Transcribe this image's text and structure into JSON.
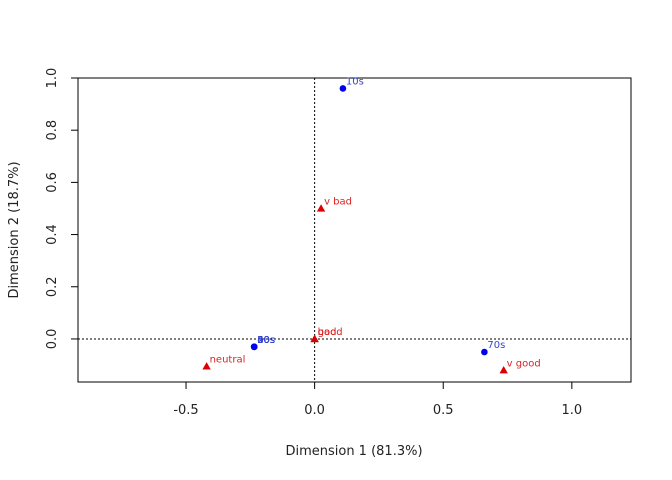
{
  "chart_data": {
    "type": "scatter",
    "title": "",
    "xlabel": "Dimension 1 (81.3%)",
    "ylabel": "Dimension 2 (18.7%)",
    "xlim": [
      -0.92,
      1.23
    ],
    "ylim": [
      -0.165,
      1.0
    ],
    "xticks": [
      -0.5,
      0.0,
      0.5,
      1.0
    ],
    "xtick_labels": [
      "-0.5",
      "0.0",
      "0.5",
      "1.0"
    ],
    "yticks": [
      0.0,
      0.2,
      0.4,
      0.6,
      0.8,
      1.0
    ],
    "ytick_labels": [
      "0.0",
      "0.2",
      "0.4",
      "0.6",
      "0.8",
      "1.0"
    ],
    "reference_lines": {
      "x": 0,
      "y": 0,
      "style": "dotted"
    },
    "grid": false,
    "series": [
      {
        "marker": "circle",
        "color": "#0000ee",
        "label_color": "#3344cc",
        "points": [
          {
            "label": "10s",
            "x": 0.11,
            "y": 0.96
          },
          {
            "label": "20s",
            "x": -0.235,
            "y": -0.03
          },
          {
            "label": "30s",
            "x": -0.235,
            "y": -0.03
          },
          {
            "label": "40s",
            "x": -0.235,
            "y": -0.03
          },
          {
            "label": "50s",
            "x": -0.235,
            "y": -0.03
          },
          {
            "label": "60s",
            "x": -0.235,
            "y": -0.03
          },
          {
            "label": "70s",
            "x": 0.66,
            "y": -0.05
          }
        ]
      },
      {
        "marker": "triangle",
        "color": "#dd0000",
        "label_color": "#dd2222",
        "points": [
          {
            "label": "v bad",
            "x": 0.025,
            "y": 0.5
          },
          {
            "label": "bad",
            "x": 0.0,
            "y": 0.0
          },
          {
            "label": "good",
            "x": 0.0,
            "y": 0.0
          },
          {
            "label": "neutral",
            "x": -0.42,
            "y": -0.105
          },
          {
            "label": "v good",
            "x": 0.735,
            "y": -0.12
          }
        ]
      }
    ]
  }
}
